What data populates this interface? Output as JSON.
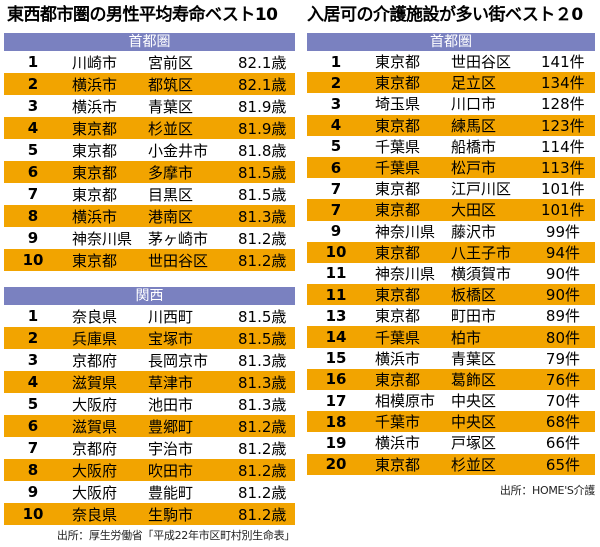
{
  "colors": {
    "section_header_bg": "#7a81c0",
    "section_header_text": "#ffffff",
    "alt_row_bg": "#f2a400",
    "row_bg": "#ffffff",
    "text": "#000000"
  },
  "chart_data": [
    {
      "type": "table",
      "title": "東西都市圏の男性平均寿命ベスト10",
      "source": "出所：厚生労働省「平成22年市区町村別生命表」",
      "sections": [
        {
          "header": "首都圏",
          "rows": [
            [
              "1",
              "川崎市",
              "宮前区",
              "82.1歳"
            ],
            [
              "2",
              "横浜市",
              "都筑区",
              "82.1歳"
            ],
            [
              "3",
              "横浜市",
              "青葉区",
              "81.9歳"
            ],
            [
              "4",
              "東京都",
              "杉並区",
              "81.9歳"
            ],
            [
              "5",
              "東京都",
              "小金井市",
              "81.8歳"
            ],
            [
              "6",
              "東京都",
              "多摩市",
              "81.5歳"
            ],
            [
              "7",
              "東京都",
              "目黒区",
              "81.5歳"
            ],
            [
              "8",
              "横浜市",
              "港南区",
              "81.3歳"
            ],
            [
              "9",
              "神奈川県",
              "茅ヶ崎市",
              "81.2歳"
            ],
            [
              "10",
              "東京都",
              "世田谷区",
              "81.2歳"
            ]
          ]
        },
        {
          "header": "関西",
          "rows": [
            [
              "1",
              "奈良県",
              "川西町",
              "81.5歳"
            ],
            [
              "2",
              "兵庫県",
              "宝塚市",
              "81.5歳"
            ],
            [
              "3",
              "京都府",
              "長岡京市",
              "81.3歳"
            ],
            [
              "4",
              "滋賀県",
              "草津市",
              "81.3歳"
            ],
            [
              "5",
              "大阪府",
              "池田市",
              "81.3歳"
            ],
            [
              "6",
              "滋賀県",
              "豊郷町",
              "81.2歳"
            ],
            [
              "7",
              "京都府",
              "宇治市",
              "81.2歳"
            ],
            [
              "8",
              "大阪府",
              "吹田市",
              "81.2歳"
            ],
            [
              "9",
              "大阪府",
              "豊能町",
              "81.2歳"
            ],
            [
              "10",
              "奈良県",
              "生駒市",
              "81.2歳"
            ]
          ]
        }
      ]
    },
    {
      "type": "table",
      "title": "入居可の介護施設が多い街ベスト２0",
      "source": "出所：HOME'S介護",
      "sections": [
        {
          "header": "首都圏",
          "rows": [
            [
              "1",
              "東京都",
              "世田谷区",
              "141件"
            ],
            [
              "2",
              "東京都",
              "足立区",
              "134件"
            ],
            [
              "3",
              "埼玉県",
              "川口市",
              "128件"
            ],
            [
              "4",
              "東京都",
              "練馬区",
              "123件"
            ],
            [
              "5",
              "千葉県",
              "船橋市",
              "114件"
            ],
            [
              "6",
              "千葉県",
              "松戸市",
              "113件"
            ],
            [
              "7",
              "東京都",
              "江戸川区",
              "101件"
            ],
            [
              "7",
              "東京都",
              "大田区",
              "101件"
            ],
            [
              "9",
              "神奈川県",
              "藤沢市",
              "99件"
            ],
            [
              "10",
              "東京都",
              "八王子市",
              "94件"
            ],
            [
              "11",
              "神奈川県",
              "横須賀市",
              "90件"
            ],
            [
              "11",
              "東京都",
              "板橋区",
              "90件"
            ],
            [
              "13",
              "東京都",
              "町田市",
              "89件"
            ],
            [
              "14",
              "千葉県",
              "柏市",
              "80件"
            ],
            [
              "15",
              "横浜市",
              "青葉区",
              "79件"
            ],
            [
              "16",
              "東京都",
              "葛飾区",
              "76件"
            ],
            [
              "17",
              "相模原市",
              "中央区",
              "70件"
            ],
            [
              "18",
              "千葉市",
              "中央区",
              "68件"
            ],
            [
              "19",
              "横浜市",
              "戸塚区",
              "66件"
            ],
            [
              "20",
              "東京都",
              "杉並区",
              "65件"
            ]
          ]
        }
      ]
    }
  ]
}
